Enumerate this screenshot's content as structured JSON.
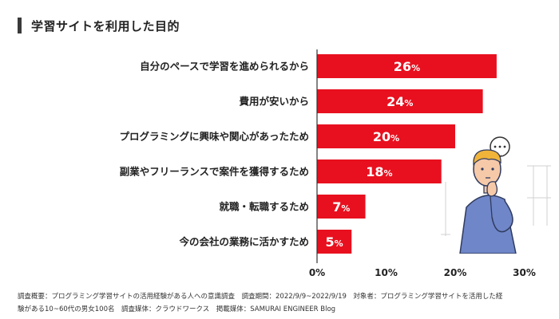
{
  "title": "学習サイトを利用した目的",
  "footer": {
    "line1": "調査概要：プログラミング学習サイトの活用経験がある人への意識調査　調査期間：2022/9/9~2022/9/19　対象者：プログラミング学習サイトを活用した経",
    "line2": "験がある10~60代の男女100名　調査媒体：クラウドワークス　掲載媒体：SAMURAI ENGINEER Blog"
  },
  "colors": {
    "bar": "#e8101f",
    "axis": "#333333",
    "grid": "#cccccc",
    "text": "#222222",
    "label": "#ffffff"
  },
  "illustration": {
    "name": "thinking-man-illustration"
  },
  "chart_data": {
    "type": "bar",
    "orientation": "horizontal",
    "categories": [
      "自分のペースで学習を進められるから",
      "費用が安いから",
      "プログラミングに興味や関心があったため",
      "副業やフリーランスで案件を獲得するため",
      "就職・転職するため",
      "今の会社の業務に活かすため"
    ],
    "values": [
      26,
      24,
      20,
      18,
      7,
      5
    ],
    "unit": "%",
    "xlim": [
      0,
      30
    ],
    "xticks": [
      0,
      10,
      20,
      30
    ],
    "xtick_labels": [
      "0%",
      "10%",
      "20%",
      "30%"
    ],
    "title": "学習サイトを利用した目的",
    "xlabel": "",
    "ylabel": "",
    "grid": false,
    "legend": "none"
  }
}
